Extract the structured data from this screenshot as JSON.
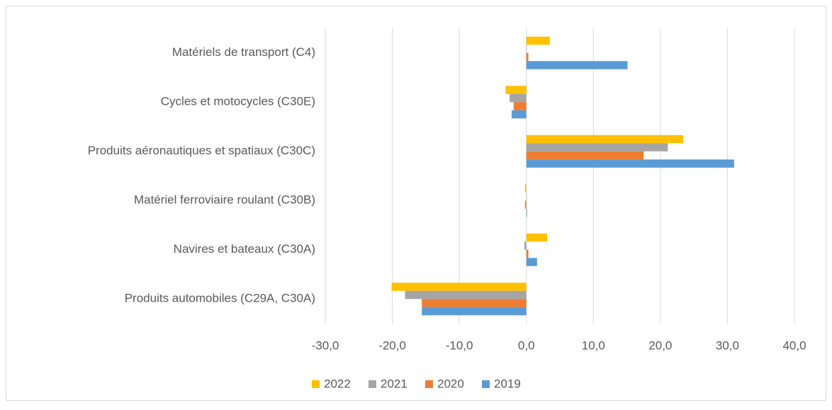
{
  "chart_data": {
    "type": "hbar",
    "categories": [
      "Produits automobiles (C29A, C30A)",
      "Navires et bateaux (C30A)",
      "Matériel ferroviaire roulant (C30B)",
      "Produits aéronautiques et spatiaux (C30C)",
      "Cycles et motocycles (C30E)",
      "Matériels de transport (C4)"
    ],
    "series": [
      {
        "name": "2022",
        "color": "#FFC000",
        "values": [
          -20.1,
          3.1,
          -0.2,
          23.4,
          -3.1,
          3.5
        ]
      },
      {
        "name": "2021",
        "color": "#A5A5A5",
        "values": [
          -18.1,
          -0.3,
          0,
          21.1,
          -2.5,
          0
        ]
      },
      {
        "name": "2020",
        "color": "#ED7D31",
        "values": [
          -15.6,
          0.3,
          -0.2,
          17.5,
          -1.9,
          0.3
        ]
      },
      {
        "name": "2019",
        "color": "#5B9BD5",
        "values": [
          -15.6,
          1.6,
          0.1,
          31.0,
          -2.2,
          15.1
        ]
      }
    ],
    "xlim": [
      -30,
      40
    ],
    "xticks": [
      {
        "value": -30,
        "label": "-30,0"
      },
      {
        "value": -20,
        "label": "-20,0"
      },
      {
        "value": -10,
        "label": "-10,0"
      },
      {
        "value": 0,
        "label": "0,0"
      },
      {
        "value": 10,
        "label": "10,0"
      },
      {
        "value": 20,
        "label": "20,0"
      },
      {
        "value": 30,
        "label": "30,0"
      },
      {
        "value": 40,
        "label": "40,0"
      }
    ],
    "grid": true,
    "legend": "bottom"
  }
}
